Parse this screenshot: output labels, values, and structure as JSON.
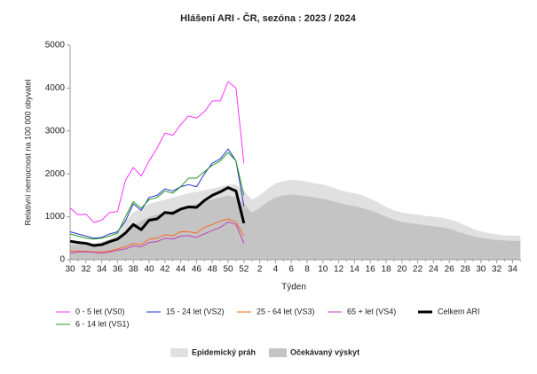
{
  "chart_data": {
    "type": "line",
    "title": "Hlášení ARI - ČR, sezóna : 2023 / 2024",
    "x_label": "Týden",
    "y_label": "Relativní nemocnost na 100 000 obyvatel",
    "categories": [
      "30",
      null,
      "32",
      null,
      "34",
      null,
      "36",
      null,
      "38",
      null,
      "40",
      null,
      "42",
      null,
      "44",
      null,
      "46",
      null,
      "48",
      null,
      "50",
      null,
      "52",
      null,
      "2",
      null,
      "4",
      null,
      "6",
      null,
      "8",
      null,
      "10",
      null,
      "12",
      null,
      "14",
      null,
      "16",
      null,
      "18",
      null,
      "20",
      null,
      "22",
      null,
      "24",
      null,
      "26",
      null,
      "28",
      null,
      "30",
      null,
      "32",
      null,
      "34",
      null
    ],
    "ylim": [
      0,
      5000
    ],
    "yticks": [
      0,
      1000,
      2000,
      3000,
      4000,
      5000
    ],
    "grid": false,
    "areas": [
      {
        "name": "Epidemický práh",
        "color": "#e0e0e0",
        "values": [
          400,
          400,
          380,
          380,
          420,
          480,
          600,
          900,
          1100,
          1200,
          1300,
          1350,
          1400,
          1450,
          1500,
          1550,
          1580,
          1620,
          1660,
          1700,
          1750,
          1750,
          1600,
          1400,
          1500,
          1650,
          1780,
          1830,
          1860,
          1850,
          1820,
          1780,
          1750,
          1700,
          1630,
          1580,
          1550,
          1500,
          1420,
          1330,
          1230,
          1150,
          1100,
          1070,
          1050,
          1020,
          1000,
          980,
          940,
          880,
          800,
          720,
          660,
          620,
          590,
          570,
          560,
          560
        ]
      },
      {
        "name": "Očekávaný výskyt",
        "color": "#c4c4c4",
        "values": [
          350,
          350,
          330,
          330,
          350,
          380,
          450,
          650,
          800,
          900,
          1000,
          1050,
          1100,
          1150,
          1200,
          1250,
          1300,
          1350,
          1400,
          1450,
          1500,
          1450,
          1300,
          1100,
          1200,
          1350,
          1450,
          1500,
          1520,
          1500,
          1480,
          1450,
          1420,
          1380,
          1320,
          1280,
          1250,
          1200,
          1150,
          1080,
          1000,
          930,
          880,
          850,
          830,
          800,
          780,
          760,
          720,
          660,
          600,
          550,
          510,
          480,
          460,
          450,
          440,
          440
        ]
      }
    ],
    "series": [
      {
        "name": "0 - 5 let (VS0)",
        "color": "#ff33ff",
        "width": 1,
        "values": [
          1200,
          1050,
          1060,
          870,
          920,
          1100,
          1120,
          1850,
          2150,
          1950,
          2300,
          2600,
          2950,
          2900,
          3150,
          3350,
          3300,
          3450,
          3700,
          3700,
          4150,
          4000,
          2250,
          null,
          null,
          null,
          null,
          null,
          null,
          null,
          null,
          null,
          null,
          null,
          null,
          null,
          null,
          null,
          null,
          null,
          null,
          null,
          null,
          null,
          null,
          null,
          null,
          null,
          null,
          null,
          null,
          null,
          null,
          null,
          null,
          null,
          null,
          null
        ]
      },
      {
        "name": "15 - 24 let (VS2)",
        "color": "#2233cc",
        "width": 1,
        "values": [
          650,
          600,
          550,
          500,
          520,
          600,
          650,
          900,
          1300,
          1150,
          1450,
          1500,
          1650,
          1600,
          1700,
          1750,
          1700,
          2000,
          2250,
          2350,
          2580,
          2300,
          1250,
          null,
          null,
          null,
          null,
          null,
          null,
          null,
          null,
          null,
          null,
          null,
          null,
          null,
          null,
          null,
          null,
          null,
          null,
          null,
          null,
          null,
          null,
          null,
          null,
          null,
          null,
          null,
          null,
          null,
          null,
          null,
          null,
          null,
          null,
          null
        ]
      },
      {
        "name": "25 - 64 let (VS3)",
        "color": "#ff6622",
        "width": 1,
        "values": [
          200,
          200,
          200,
          180,
          180,
          200,
          250,
          300,
          380,
          350,
          480,
          500,
          580,
          560,
          650,
          650,
          620,
          750,
          820,
          900,
          950,
          880,
          550,
          null,
          null,
          null,
          null,
          null,
          null,
          null,
          null,
          null,
          null,
          null,
          null,
          null,
          null,
          null,
          null,
          null,
          null,
          null,
          null,
          null,
          null,
          null,
          null,
          null,
          null,
          null,
          null,
          null,
          null,
          null,
          null,
          null,
          null,
          null
        ]
      },
      {
        "name": "65 + let (VS4)",
        "color": "#bb44bb",
        "width": 1,
        "values": [
          150,
          180,
          180,
          170,
          150,
          180,
          220,
          250,
          320,
          300,
          400,
          420,
          500,
          480,
          550,
          560,
          520,
          600,
          680,
          750,
          880,
          820,
          380,
          null,
          null,
          null,
          null,
          null,
          null,
          null,
          null,
          null,
          null,
          null,
          null,
          null,
          null,
          null,
          null,
          null,
          null,
          null,
          null,
          null,
          null,
          null,
          null,
          null,
          null,
          null,
          null,
          null,
          null,
          null,
          null,
          null,
          null,
          null
        ]
      },
      {
        "name": "Celkem ARI",
        "color": "#000000",
        "width": 3,
        "values": [
          430,
          400,
          380,
          330,
          350,
          420,
          480,
          620,
          820,
          700,
          920,
          950,
          1100,
          1080,
          1180,
          1230,
          1220,
          1380,
          1500,
          1580,
          1680,
          1600,
          850,
          null,
          null,
          null,
          null,
          null,
          null,
          null,
          null,
          null,
          null,
          null,
          null,
          null,
          null,
          null,
          null,
          null,
          null,
          null,
          null,
          null,
          null,
          null,
          null,
          null,
          null,
          null,
          null,
          null,
          null,
          null,
          null,
          null,
          null,
          null
        ]
      },
      {
        "name": "6 - 14 let (VS1)",
        "color": "#229922",
        "width": 1,
        "values": [
          600,
          550,
          500,
          480,
          500,
          550,
          620,
          1000,
          1350,
          1200,
          1400,
          1450,
          1600,
          1550,
          1700,
          1900,
          1900,
          2050,
          2200,
          2300,
          2500,
          2300,
          1500,
          null,
          null,
          null,
          null,
          null,
          null,
          null,
          null,
          null,
          null,
          null,
          null,
          null,
          null,
          null,
          null,
          null,
          null,
          null,
          null,
          null,
          null,
          null,
          null,
          null,
          null,
          null,
          null,
          null,
          null,
          null,
          null,
          null,
          null,
          null
        ]
      }
    ]
  }
}
